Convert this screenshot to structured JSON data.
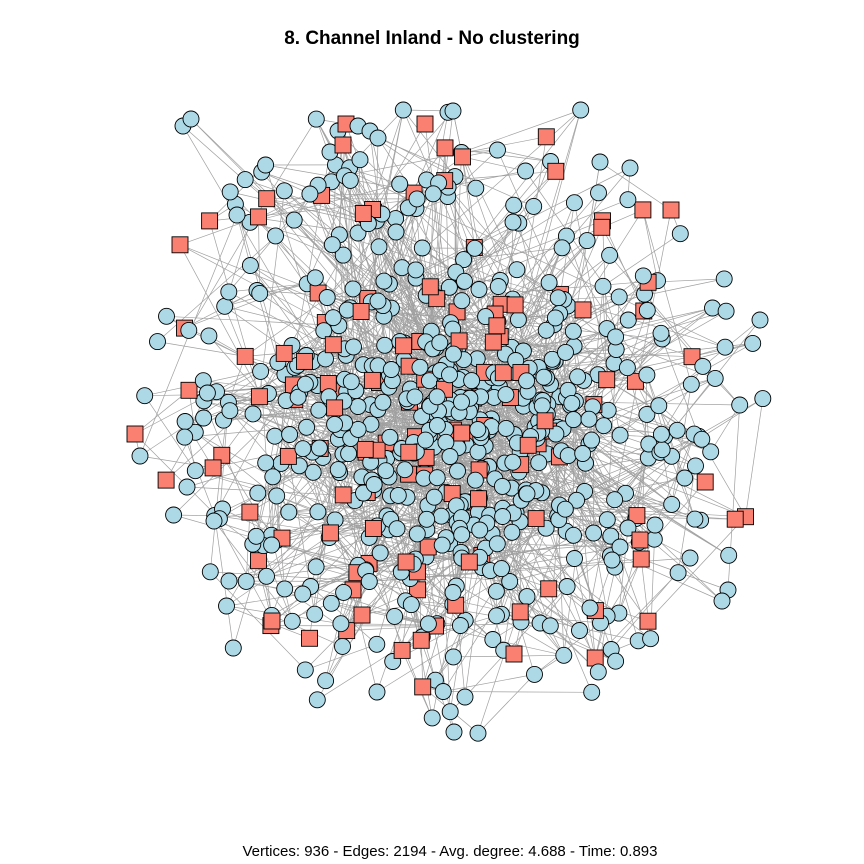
{
  "title": "8. Channel Inland - No clustering",
  "caption": "Vertices: 936 - Edges: 2194 - Avg. degree: 4.688 - Time: 0.893",
  "network": {
    "vertex_count": 936,
    "edge_count": 2194,
    "avg_degree": 4.688,
    "time": 0.893
  },
  "colors": {
    "circle_fill": "#add8e6",
    "square_fill": "#fa8072",
    "edge": "#a0a0a0",
    "outline": "#000000"
  },
  "legend": {
    "circle": "vertex-circle",
    "square": "vertex-square"
  }
}
